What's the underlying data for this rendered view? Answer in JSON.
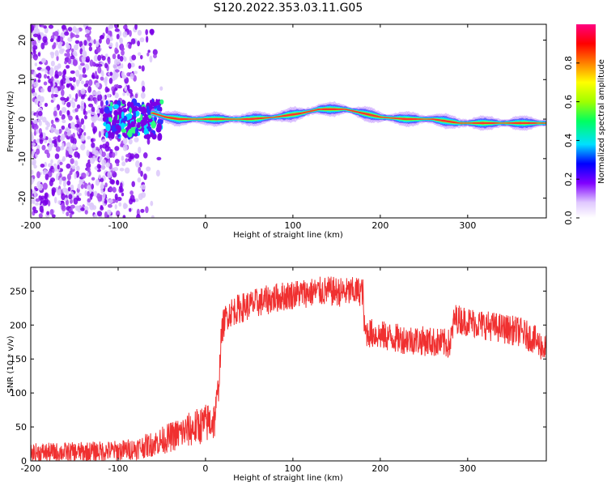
{
  "title": "S120.2022.353.03.11.G05",
  "chart_data": [
    {
      "type": "heatmap",
      "xlabel": "Height of straight line (km)",
      "ylabel": "Frequency (Hz)",
      "xlim": [
        -200,
        390
      ],
      "ylim": [
        -25,
        24
      ],
      "x_ticks": [
        -200,
        -100,
        0,
        100,
        200,
        300
      ],
      "y_ticks": [
        -20,
        -10,
        0,
        10,
        20
      ],
      "colorbar": {
        "label": "Normalized spectral amplitude",
        "range": [
          0,
          1
        ],
        "ticks": [
          0.0,
          0.2,
          0.4,
          0.6,
          0.8
        ],
        "colors": [
          "#ffffff",
          "#e0c8ff",
          "#8000ff",
          "#0000ff",
          "#00e0ff",
          "#00ff60",
          "#a0ff00",
          "#ffff00",
          "#ff8000",
          "#ff0000",
          "#ff0080"
        ]
      },
      "ridge": {
        "x": [
          -60,
          -45,
          -30,
          0,
          50,
          80,
          110,
          130,
          160,
          180,
          200,
          230,
          260,
          290,
          320,
          350,
          388
        ],
        "frequency": [
          1.5,
          0.5,
          0.0,
          0.0,
          0.0,
          0.5,
          1.5,
          2.5,
          2.5,
          1.5,
          0.5,
          0.0,
          0.0,
          -1.0,
          -1.0,
          -1.0,
          -1.0
        ]
      },
      "grid": false
    },
    {
      "type": "line",
      "xlabel": "Height of straight line (km)",
      "ylabel": "SNR (10 * v/v)",
      "xlim": [
        -200,
        390
      ],
      "ylim": [
        0,
        285
      ],
      "x_ticks": [
        -200,
        -100,
        0,
        100,
        200,
        300
      ],
      "y_ticks": [
        0,
        50,
        100,
        150,
        200,
        250
      ],
      "color": "#f03030",
      "series": [
        {
          "x": [
            -200,
            -150,
            -100,
            -80,
            -60,
            -40,
            -20,
            -10,
            0,
            10,
            15,
            18,
            20,
            25,
            30,
            40,
            60,
            80,
            100,
            120,
            140,
            160,
            180,
            182,
            200,
            220,
            240,
            260,
            280,
            285,
            300,
            320,
            340,
            360,
            375,
            388
          ],
          "y": [
            12,
            13,
            15,
            18,
            25,
            35,
            45,
            50,
            55,
            60,
            110,
            180,
            200,
            215,
            220,
            225,
            233,
            240,
            245,
            248,
            250,
            248,
            250,
            190,
            185,
            180,
            178,
            175,
            172,
            210,
            205,
            200,
            195,
            190,
            180,
            165
          ]
        }
      ],
      "grid": false
    }
  ]
}
